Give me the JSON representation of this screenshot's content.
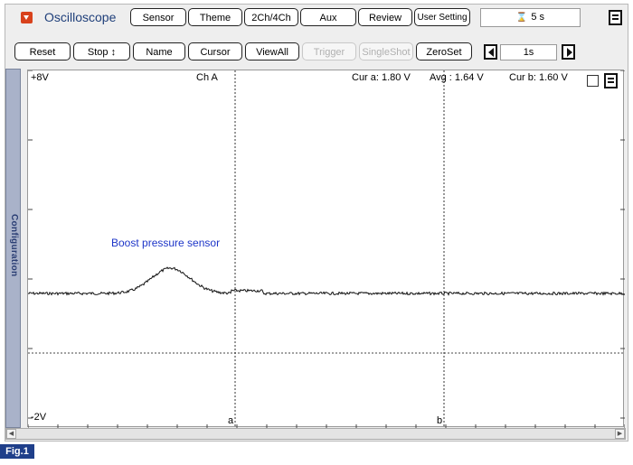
{
  "app": {
    "title": "Oscilloscope"
  },
  "toolbar_top": [
    "Sensor",
    "Theme",
    "2Ch/4Ch",
    "Aux",
    "Review",
    "User Setting"
  ],
  "record_time": "5 s",
  "toolbar_bottom": [
    {
      "label": "Reset",
      "enabled": true
    },
    {
      "label": "Stop ↕",
      "enabled": true
    },
    {
      "label": "Name",
      "enabled": true
    },
    {
      "label": "Cursor",
      "enabled": true
    },
    {
      "label": "ViewAll",
      "enabled": true
    },
    {
      "label": "Trigger",
      "enabled": false
    },
    {
      "label": "SingleShot",
      "enabled": false
    },
    {
      "label": "ZeroSet",
      "enabled": true
    }
  ],
  "timebase": "1s",
  "sidebar": {
    "label": "Configuration"
  },
  "plot": {
    "top_value": "+8V",
    "bottom_value": "-2V",
    "channel": "Ch A",
    "cursor_a_readout": "Cur a: 1.80 V",
    "average_readout": "Avg : 1.64 V",
    "cursor_b_readout": "Cur b: 1.60 V",
    "cursor_a_label": "a",
    "cursor_b_label": "b",
    "signal_label": "Boost pressure sensor"
  },
  "figure_label": "Fig.1"
}
